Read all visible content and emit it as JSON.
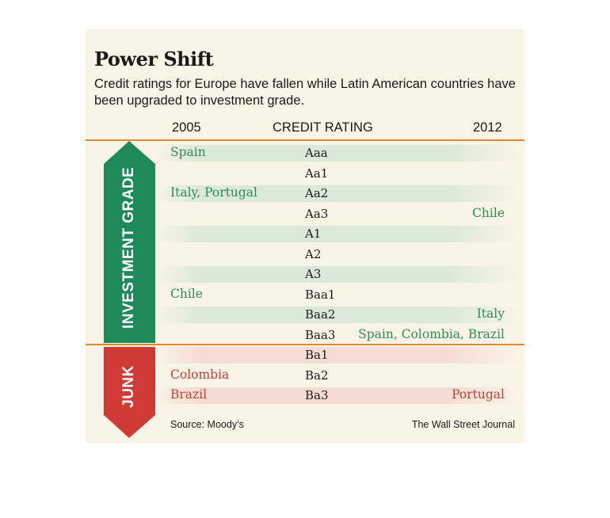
{
  "title": "Power Shift",
  "subtitle": "Credit ratings for Europe have fallen while Latin American countries have been upgraded to investment grade.",
  "headers": {
    "left": "2005",
    "center": "CREDIT RATING",
    "right": "2012"
  },
  "zones": {
    "upper": "INVESTMENT GRADE",
    "lower": "JUNK"
  },
  "colors": {
    "investment": "#1e8a5a",
    "junk": "#cf3a35",
    "rule": "#e8862e",
    "panel": "#f8f4e6"
  },
  "source": "Source: Moody’s",
  "credit": "The Wall Street Journal",
  "chart_data": {
    "type": "table",
    "ratings": [
      "Aaa",
      "Aa1",
      "Aa2",
      "Aa3",
      "A1",
      "A2",
      "A3",
      "Baa1",
      "Baa2",
      "Baa3",
      "Ba1",
      "Ba2",
      "Ba3"
    ],
    "grades": [
      "investment",
      "investment",
      "investment",
      "investment",
      "investment",
      "investment",
      "investment",
      "investment",
      "investment",
      "investment",
      "junk",
      "junk",
      "junk"
    ],
    "col_2005": [
      "Spain",
      "",
      "Italy, Portugal",
      "",
      "",
      "",
      "",
      "Chile",
      "",
      "",
      "",
      "Colombia",
      "Brazil"
    ],
    "col_2012": [
      "",
      "",
      "",
      "Chile",
      "",
      "",
      "",
      "",
      "Italy",
      "Spain, Colombia, Brazil",
      "",
      "",
      "Portugal"
    ],
    "colors_2005": [
      "green",
      "",
      "green",
      "",
      "",
      "",
      "",
      "green",
      "",
      "",
      "",
      "red",
      "red"
    ],
    "colors_2012": [
      "",
      "",
      "",
      "green",
      "",
      "",
      "",
      "",
      "green",
      "green",
      "",
      "",
      "red"
    ]
  }
}
